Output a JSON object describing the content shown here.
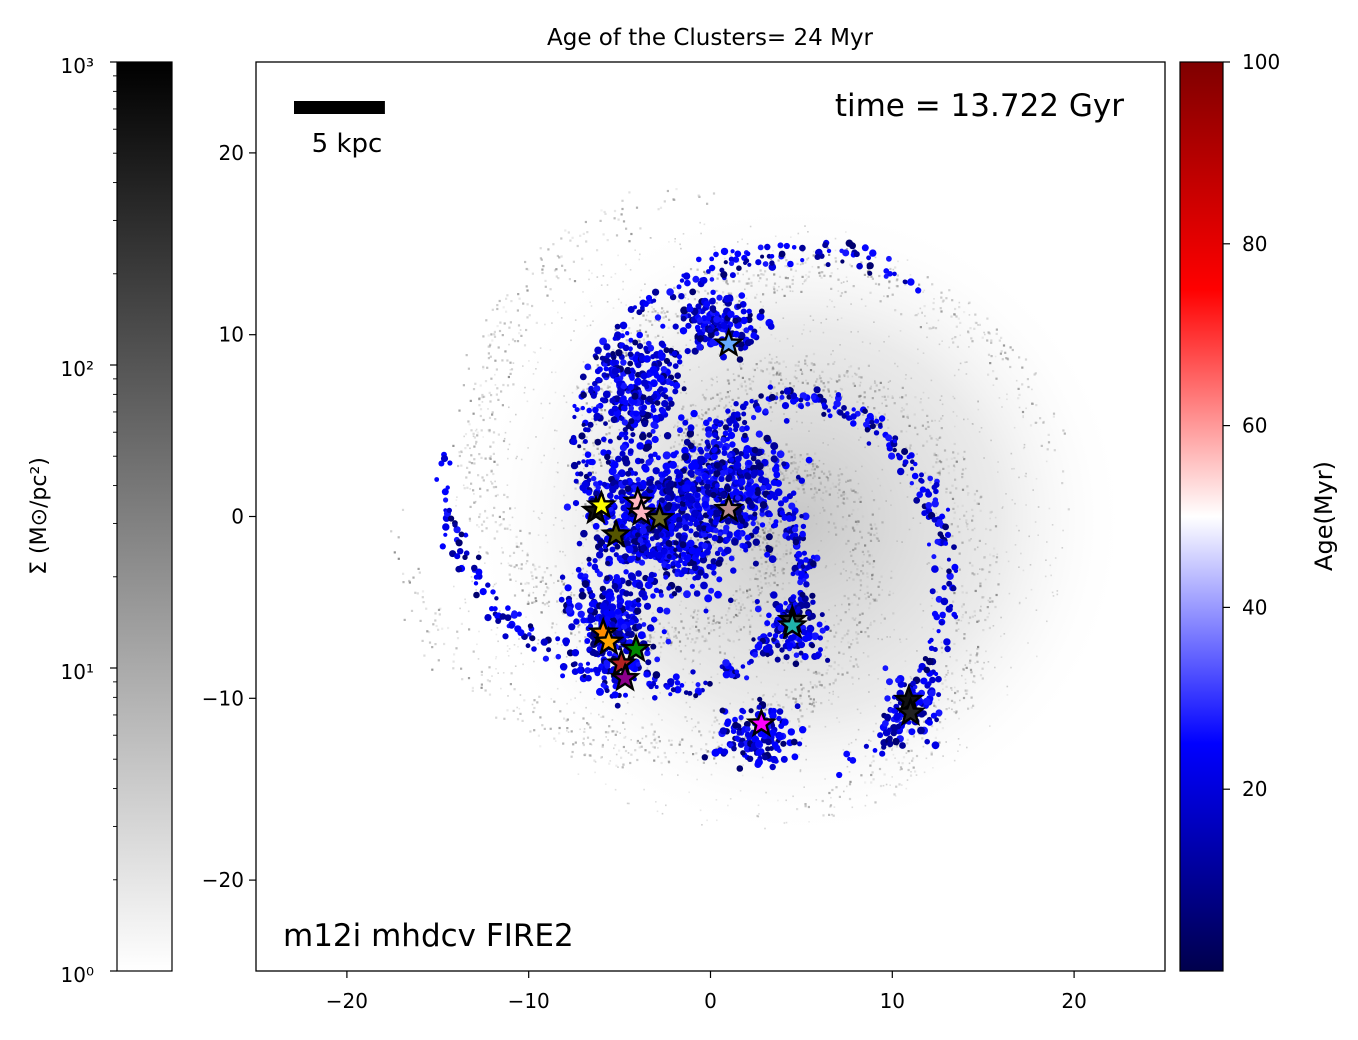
{
  "chart_data": {
    "type": "scatter",
    "title": "Age of the Clusters= 24 Myr",
    "xlim": [
      -25,
      25
    ],
    "ylim": [
      -25,
      25
    ],
    "xticks": [
      -20,
      -10,
      0,
      10,
      20
    ],
    "yticks": [
      -20,
      -10,
      0,
      10,
      20
    ],
    "xtick_labels": [
      "−20",
      "−10",
      "0",
      "10",
      "20"
    ],
    "ytick_labels": [
      "−20",
      "−10",
      "0",
      "10",
      "20"
    ],
    "grid": false,
    "annotations": {
      "time": "time = 13.722 Gyr",
      "scale_bar": "5 kpc",
      "scale_bar_length": 5,
      "simulation": "m12i mhdcv FIRE2"
    },
    "background": {
      "description": "gas surface density map (grey, log scale)",
      "colorbar_label": "Σ (M⊙/pc²)",
      "scale": "log",
      "range": [
        1,
        1000
      ],
      "tick_labels": [
        "10⁰",
        "10¹",
        "10²",
        "10³"
      ]
    },
    "age_colorbar": {
      "label": "Age(Myr)",
      "range": [
        0,
        100
      ],
      "ticks": [
        20,
        40,
        60,
        80,
        100
      ],
      "colormap": "seismic"
    },
    "clusters": {
      "marker": "star",
      "points": [
        {
          "x": 1.0,
          "y": 9.5,
          "color": "#66aaff"
        },
        {
          "x": -6.3,
          "y": 0.3,
          "color": "#111111"
        },
        {
          "x": -6.0,
          "y": 0.6,
          "color": "#ffff00"
        },
        {
          "x": -5.2,
          "y": -1.0,
          "color": "#555500"
        },
        {
          "x": -4.0,
          "y": 0.8,
          "color": "#ffb6c1"
        },
        {
          "x": -3.8,
          "y": 0.2,
          "color": "#ffb6c1"
        },
        {
          "x": -2.8,
          "y": -0.1,
          "color": "#6b6b1e"
        },
        {
          "x": 1.0,
          "y": 0.4,
          "color": "#bc8f8f"
        },
        {
          "x": 4.5,
          "y": -5.7,
          "color": "#333333"
        },
        {
          "x": 4.5,
          "y": -6.0,
          "color": "#20b2aa"
        },
        {
          "x": -5.9,
          "y": -6.4,
          "color": "#ff8c00"
        },
        {
          "x": -5.6,
          "y": -6.9,
          "color": "#ffa500"
        },
        {
          "x": -4.1,
          "y": -7.3,
          "color": "#008800"
        },
        {
          "x": -4.9,
          "y": -8.1,
          "color": "#b22222"
        },
        {
          "x": -4.7,
          "y": -8.9,
          "color": "#8b008b"
        },
        {
          "x": 2.8,
          "y": -11.4,
          "color": "#ff00ff"
        },
        {
          "x": 10.9,
          "y": -10.1,
          "color": "#111111"
        },
        {
          "x": 11.0,
          "y": -10.8,
          "color": "#222222"
        }
      ]
    }
  }
}
